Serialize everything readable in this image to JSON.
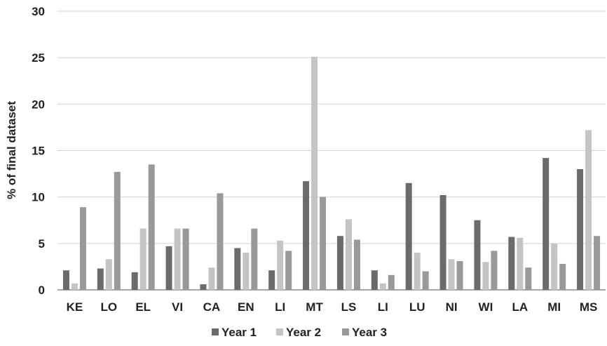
{
  "chart_data": {
    "type": "bar",
    "title": "",
    "xlabel": "",
    "ylabel": "% of final dataset",
    "ylim": [
      0,
      30
    ],
    "yticks": [
      0,
      5,
      10,
      15,
      20,
      25,
      30
    ],
    "grid": true,
    "legend_position": "bottom",
    "categories": [
      "KE",
      "LO",
      "EL",
      "VI",
      "CA",
      "EN",
      "LI",
      "MT",
      "LS",
      "LI",
      "LU",
      "NI",
      "WI",
      "LA",
      "MI",
      "MS"
    ],
    "series": [
      {
        "name": "Year 1",
        "color": "#6b6b6b",
        "values": [
          2.1,
          2.3,
          1.9,
          4.7,
          0.6,
          4.5,
          2.1,
          11.7,
          5.8,
          2.1,
          11.5,
          10.2,
          7.5,
          5.7,
          14.2,
          13.0
        ]
      },
      {
        "name": "Year 2",
        "color": "#c4c4c4",
        "values": [
          0.7,
          3.3,
          6.6,
          6.6,
          2.4,
          4.0,
          5.3,
          25.1,
          7.6,
          0.7,
          4.0,
          3.3,
          3.0,
          5.6,
          5.0,
          17.2
        ]
      },
      {
        "name": "Year 3",
        "color": "#999999",
        "values": [
          8.9,
          12.7,
          13.5,
          6.6,
          10.4,
          6.6,
          4.2,
          10.0,
          5.4,
          1.6,
          2.0,
          3.1,
          4.2,
          2.4,
          2.8,
          5.8
        ]
      }
    ]
  }
}
